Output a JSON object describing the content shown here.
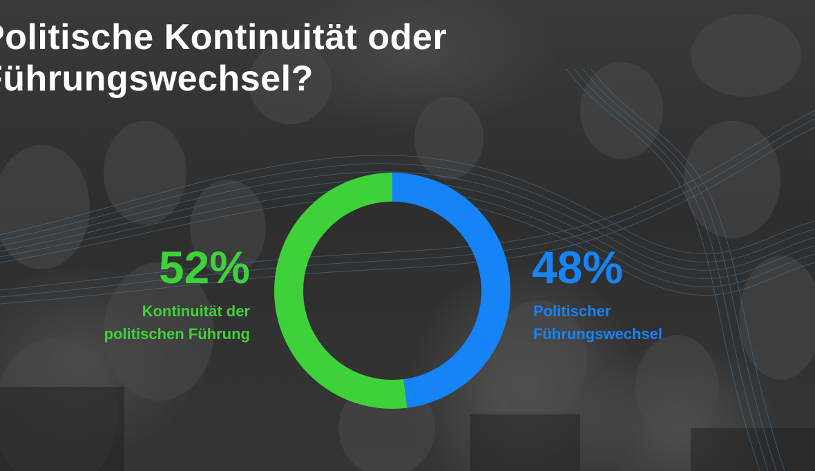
{
  "chart_data": {
    "type": "pie",
    "title": "Politische Kontinuität oder\nFührungswechsel?",
    "slices": [
      {
        "name": "Politischer\nFührungswechsel",
        "value": 48,
        "display": "48%",
        "color": "#1683f6"
      },
      {
        "name": "Kontinuität der\npolitischen Führung",
        "value": 52,
        "display": "52%",
        "color": "#3fd13a"
      }
    ]
  }
}
